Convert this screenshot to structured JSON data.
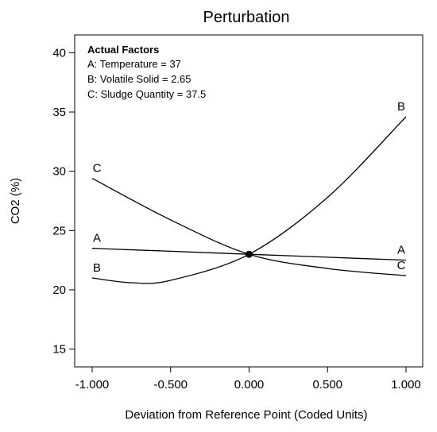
{
  "chart_data": {
    "type": "line",
    "title": "Perturbation",
    "xlabel": "Deviation from Reference Point (Coded Units)",
    "ylabel": "CO2 (%)",
    "xlim": [
      -1.0,
      1.0
    ],
    "ylim": [
      13.5,
      41.5
    ],
    "x_ticks": [
      "-1.000",
      "-0.500",
      "0.000",
      "0.500",
      "1.000"
    ],
    "y_ticks": [
      "15",
      "20",
      "25",
      "30",
      "35",
      "40"
    ],
    "annotation": {
      "heading": "Actual Factors",
      "lines": [
        "A: Temperature = 37",
        "B: Volatile Solid = 2.65",
        "C: Sludge Quantity = 37.5"
      ]
    },
    "reference_point": {
      "x": 0.0,
      "y": 23.0
    },
    "series": [
      {
        "name": "A",
        "x": [
          -1.0,
          -0.5,
          0.0,
          0.5,
          1.0
        ],
        "values": [
          23.5,
          23.25,
          23.0,
          22.75,
          22.5
        ]
      },
      {
        "name": "B",
        "x": [
          -1.0,
          -0.75,
          -0.5,
          0.0,
          0.5,
          1.0
        ],
        "values": [
          21.0,
          20.6,
          20.8,
          23.0,
          27.8,
          34.6
        ]
      },
      {
        "name": "C",
        "x": [
          -1.0,
          -0.5,
          0.0,
          0.5,
          1.0
        ],
        "values": [
          29.4,
          25.9,
          23.0,
          21.8,
          21.2
        ]
      }
    ]
  }
}
